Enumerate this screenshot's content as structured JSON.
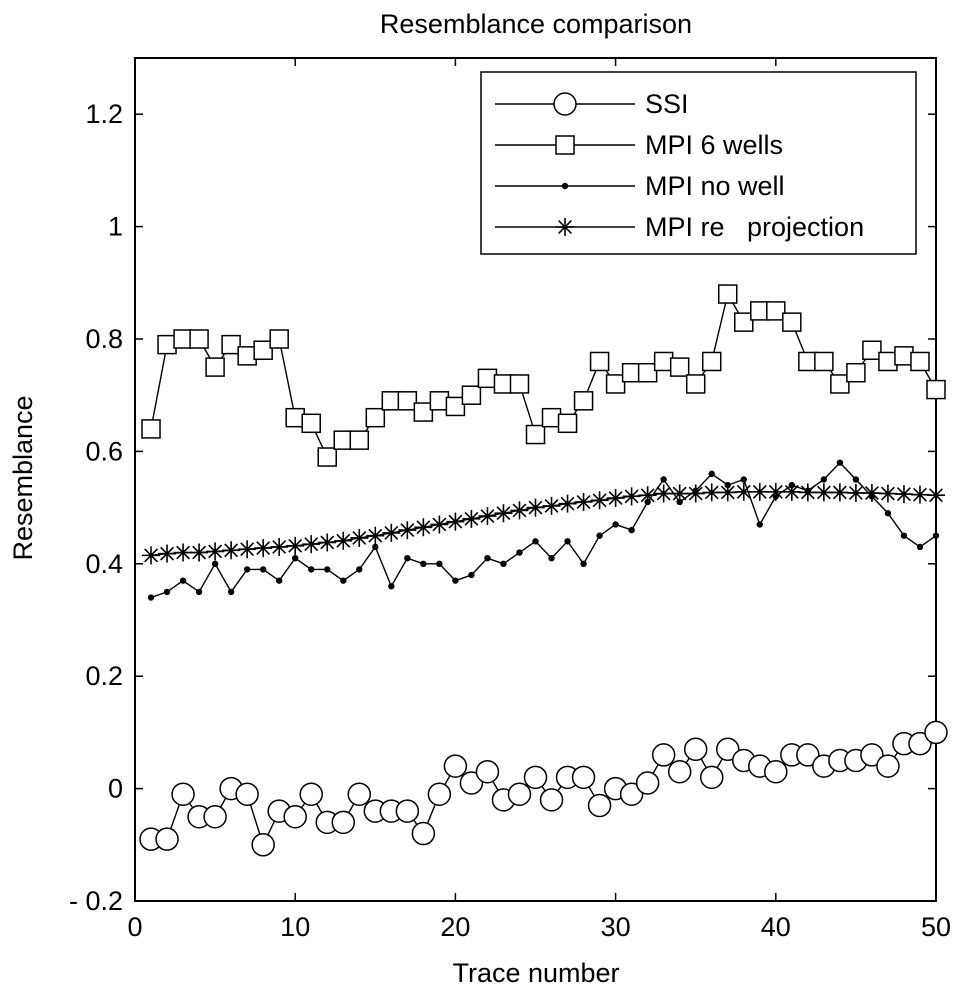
{
  "chart_data": {
    "type": "line",
    "title": "Resemblance comparison",
    "xlabel": "Trace number",
    "ylabel": "Resemblance",
    "xlim": [
      0,
      50
    ],
    "ylim": [
      -0.2,
      1.3
    ],
    "xticks": [
      0,
      10,
      20,
      30,
      40,
      50
    ],
    "xtick_labels": [
      "0",
      "10",
      "20",
      "30",
      "40",
      "50"
    ],
    "yticks": [
      -0.2,
      0,
      0.2,
      0.4,
      0.6,
      0.8,
      1,
      1.2
    ],
    "ytick_labels": [
      "- 0.2",
      "0",
      "0.2",
      "0.4",
      "0.6",
      "0.8",
      "1",
      "1.2"
    ],
    "grid": false,
    "legend_position": "top-right",
    "x": [
      1,
      2,
      3,
      4,
      5,
      6,
      7,
      8,
      9,
      10,
      11,
      12,
      13,
      14,
      15,
      16,
      17,
      18,
      19,
      20,
      21,
      22,
      23,
      24,
      25,
      26,
      27,
      28,
      29,
      30,
      31,
      32,
      33,
      34,
      35,
      36,
      37,
      38,
      39,
      40,
      41,
      42,
      43,
      44,
      45,
      46,
      47,
      48,
      49,
      50
    ],
    "series": [
      {
        "name": "SSI",
        "marker": "circle",
        "color": "#000000",
        "values": [
          -0.09,
          -0.09,
          -0.01,
          -0.05,
          -0.05,
          0.0,
          -0.01,
          -0.1,
          -0.04,
          -0.05,
          -0.01,
          -0.06,
          -0.06,
          -0.01,
          -0.04,
          -0.04,
          -0.04,
          -0.08,
          -0.01,
          0.04,
          0.01,
          0.03,
          -0.02,
          -0.01,
          0.02,
          -0.02,
          0.02,
          0.02,
          -0.03,
          0.0,
          -0.01,
          0.01,
          0.06,
          0.03,
          0.07,
          0.02,
          0.07,
          0.05,
          0.04,
          0.03,
          0.06,
          0.06,
          0.04,
          0.05,
          0.05,
          0.06,
          0.04,
          0.08,
          0.08,
          0.1
        ]
      },
      {
        "name": "MPI 6 wells",
        "marker": "square",
        "color": "#000000",
        "values": [
          0.64,
          0.79,
          0.8,
          0.8,
          0.75,
          0.79,
          0.77,
          0.78,
          0.8,
          0.66,
          0.65,
          0.59,
          0.62,
          0.62,
          0.66,
          0.69,
          0.69,
          0.67,
          0.69,
          0.68,
          0.7,
          0.73,
          0.72,
          0.72,
          0.63,
          0.66,
          0.65,
          0.69,
          0.76,
          0.72,
          0.74,
          0.74,
          0.76,
          0.75,
          0.72,
          0.76,
          0.88,
          0.83,
          0.85,
          0.85,
          0.83,
          0.76,
          0.76,
          0.72,
          0.74,
          0.78,
          0.76,
          0.77,
          0.76,
          0.71
        ]
      },
      {
        "name": "MPI no well",
        "marker": "dot",
        "color": "#000000",
        "values": [
          0.34,
          0.35,
          0.37,
          0.35,
          0.4,
          0.35,
          0.39,
          0.39,
          0.37,
          0.41,
          0.39,
          0.39,
          0.37,
          0.39,
          0.43,
          0.36,
          0.41,
          0.4,
          0.4,
          0.37,
          0.38,
          0.41,
          0.4,
          0.42,
          0.44,
          0.41,
          0.44,
          0.4,
          0.45,
          0.47,
          0.46,
          0.51,
          0.55,
          0.51,
          0.53,
          0.56,
          0.54,
          0.55,
          0.47,
          0.52,
          0.54,
          0.53,
          0.55,
          0.58,
          0.55,
          0.52,
          0.49,
          0.45,
          0.43,
          0.45
        ]
      },
      {
        "name": "MPI re   projection",
        "marker": "asterisk",
        "color": "#000000",
        "values": [
          0.415,
          0.418,
          0.42,
          0.42,
          0.422,
          0.424,
          0.426,
          0.428,
          0.43,
          0.432,
          0.435,
          0.438,
          0.441,
          0.446,
          0.45,
          0.455,
          0.46,
          0.465,
          0.47,
          0.475,
          0.48,
          0.485,
          0.49,
          0.495,
          0.5,
          0.503,
          0.507,
          0.51,
          0.513,
          0.517,
          0.52,
          0.522,
          0.525,
          0.525,
          0.525,
          0.527,
          0.527,
          0.528,
          0.528,
          0.528,
          0.528,
          0.527,
          0.527,
          0.527,
          0.526,
          0.526,
          0.525,
          0.524,
          0.523,
          0.522
        ]
      }
    ]
  }
}
